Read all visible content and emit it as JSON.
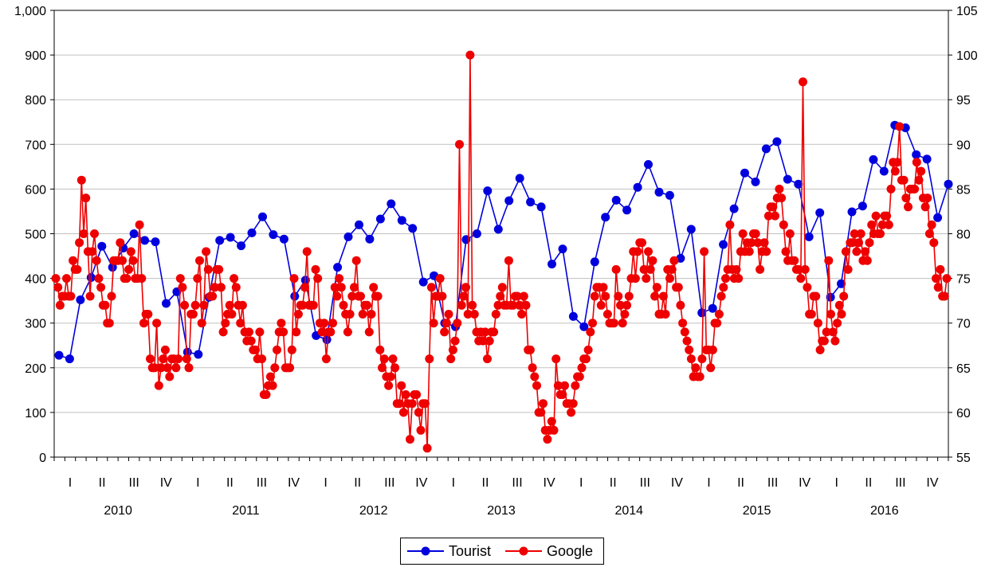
{
  "chart_data": {
    "type": "line",
    "title": "",
    "xlabel": "",
    "ylabel": "",
    "ylim_left": [
      0,
      1000
    ],
    "ylim_right": [
      55,
      105
    ],
    "left_ticks": [
      "0",
      "100",
      "200",
      "300",
      "400",
      "500",
      "600",
      "700",
      "800",
      "900",
      "1,000"
    ],
    "right_ticks": [
      "55",
      "60",
      "65",
      "70",
      "75",
      "80",
      "85",
      "90",
      "95",
      "100",
      "105"
    ],
    "years": [
      "2010",
      "2011",
      "2012",
      "2013",
      "2014",
      "2015",
      "2016"
    ],
    "quarter_labels": [
      "I",
      "II",
      "III",
      "IV"
    ],
    "grid": true,
    "legend_position": "bottom",
    "series": [
      {
        "name": "Tourist",
        "axis": "left",
        "color": "#0000dd",
        "frequency": "monthly",
        "values": [
          228,
          220,
          352,
          402,
          472,
          425,
          468,
          500,
          485,
          482,
          344,
          370,
          235,
          230,
          358,
          485,
          492,
          473,
          502,
          538,
          498,
          488,
          360,
          396,
          272,
          263,
          425,
          493,
          520,
          488,
          533,
          567,
          530,
          512,
          392,
          406,
          300,
          292,
          487,
          500,
          596,
          510,
          574,
          624,
          571,
          560,
          432,
          466,
          315,
          292,
          437,
          537,
          575,
          553,
          604,
          655,
          593,
          586,
          445,
          510,
          323,
          333,
          476,
          556,
          636,
          616,
          690,
          706,
          622,
          611,
          493,
          547,
          358,
          388,
          549,
          562,
          666,
          640,
          743,
          737,
          677,
          667,
          536,
          611
        ]
      },
      {
        "name": "Google",
        "axis": "right",
        "color": "#ee0000",
        "frequency": "weekly",
        "values": [
          75,
          74,
          72,
          73,
          73,
          75,
          73,
          73,
          77,
          76,
          76,
          79,
          86,
          80,
          84,
          78,
          73,
          78,
          80,
          77,
          75,
          74,
          72,
          72,
          70,
          70,
          73,
          77,
          77,
          77,
          79,
          77,
          75,
          75,
          76,
          78,
          77,
          75,
          75,
          81,
          75,
          70,
          71,
          71,
          66,
          65,
          65,
          70,
          63,
          65,
          66,
          67,
          65,
          64,
          66,
          66,
          65,
          66,
          75,
          74,
          72,
          66,
          65,
          71,
          71,
          72,
          75,
          77,
          70,
          72,
          78,
          76,
          73,
          73,
          74,
          76,
          76,
          74,
          69,
          70,
          71,
          72,
          71,
          75,
          74,
          72,
          70,
          72,
          69,
          68,
          69,
          68,
          67,
          67,
          66,
          69,
          66,
          62,
          62,
          63,
          64,
          63,
          65,
          67,
          69,
          70,
          69,
          65,
          65,
          65,
          67,
          75,
          69,
          71,
          72,
          72,
          74,
          78,
          72,
          72,
          72,
          76,
          75,
          70,
          69,
          70,
          66,
          69,
          69,
          70,
          74,
          73,
          75,
          74,
          72,
          71,
          69,
          71,
          73,
          74,
          77,
          73,
          73,
          71,
          72,
          72,
          69,
          71,
          74,
          73,
          73,
          67,
          65,
          66,
          64,
          63,
          64,
          66,
          65,
          61,
          61,
          63,
          60,
          62,
          61,
          57,
          61,
          62,
          62,
          60,
          58,
          61,
          61,
          56,
          66,
          74,
          70,
          73,
          73,
          75,
          73,
          69,
          70,
          71,
          66,
          67,
          68,
          70,
          90,
          72,
          73,
          74,
          71,
          100,
          72,
          71,
          69,
          68,
          69,
          68,
          69,
          66,
          68,
          69,
          69,
          71,
          72,
          73,
          74,
          72,
          72,
          77,
          72,
          72,
          73,
          73,
          72,
          71,
          73,
          72,
          67,
          67,
          65,
          64,
          63,
          60,
          60,
          61,
          58,
          57,
          58,
          59,
          58,
          66,
          63,
          62,
          62,
          63,
          61,
          61,
          60,
          61,
          63,
          64,
          64,
          65,
          66,
          66,
          67,
          69,
          70,
          73,
          74,
          74,
          72,
          74,
          73,
          71,
          70,
          70,
          70,
          76,
          73,
          72,
          70,
          71,
          72,
          73,
          75,
          78,
          75,
          78,
          79,
          79,
          76,
          75,
          78,
          76,
          77,
          73,
          74,
          71,
          71,
          73,
          71,
          76,
          75,
          76,
          77,
          74,
          74,
          72,
          70,
          69,
          68,
          67,
          66,
          64,
          65,
          64,
          64,
          66,
          78,
          67,
          67,
          65,
          67,
          70,
          70,
          71,
          73,
          74,
          75,
          76,
          81,
          76,
          75,
          76,
          75,
          78,
          80,
          78,
          79,
          78,
          79,
          80,
          80,
          79,
          76,
          78,
          79,
          78,
          82,
          83,
          83,
          82,
          84,
          85,
          84,
          81,
          78,
          77,
          80,
          77,
          77,
          76,
          76,
          75,
          97,
          76,
          74,
          71,
          71,
          73,
          73,
          70,
          67,
          68,
          68,
          69,
          77,
          71,
          69,
          68,
          70,
          72,
          71,
          73,
          78,
          76,
          79,
          79,
          80,
          78,
          79,
          80,
          77,
          78,
          77,
          79,
          81,
          80,
          82,
          80,
          80,
          81,
          82,
          82,
          81,
          85,
          88,
          87,
          88,
          92,
          86,
          86,
          84,
          83,
          85,
          85,
          85,
          88,
          86,
          87,
          84,
          83,
          84,
          80,
          81,
          79,
          75,
          74,
          76,
          73,
          73,
          75
        ]
      }
    ]
  },
  "legend": {
    "tourist_label": "Tourist",
    "google_label": "Google"
  }
}
